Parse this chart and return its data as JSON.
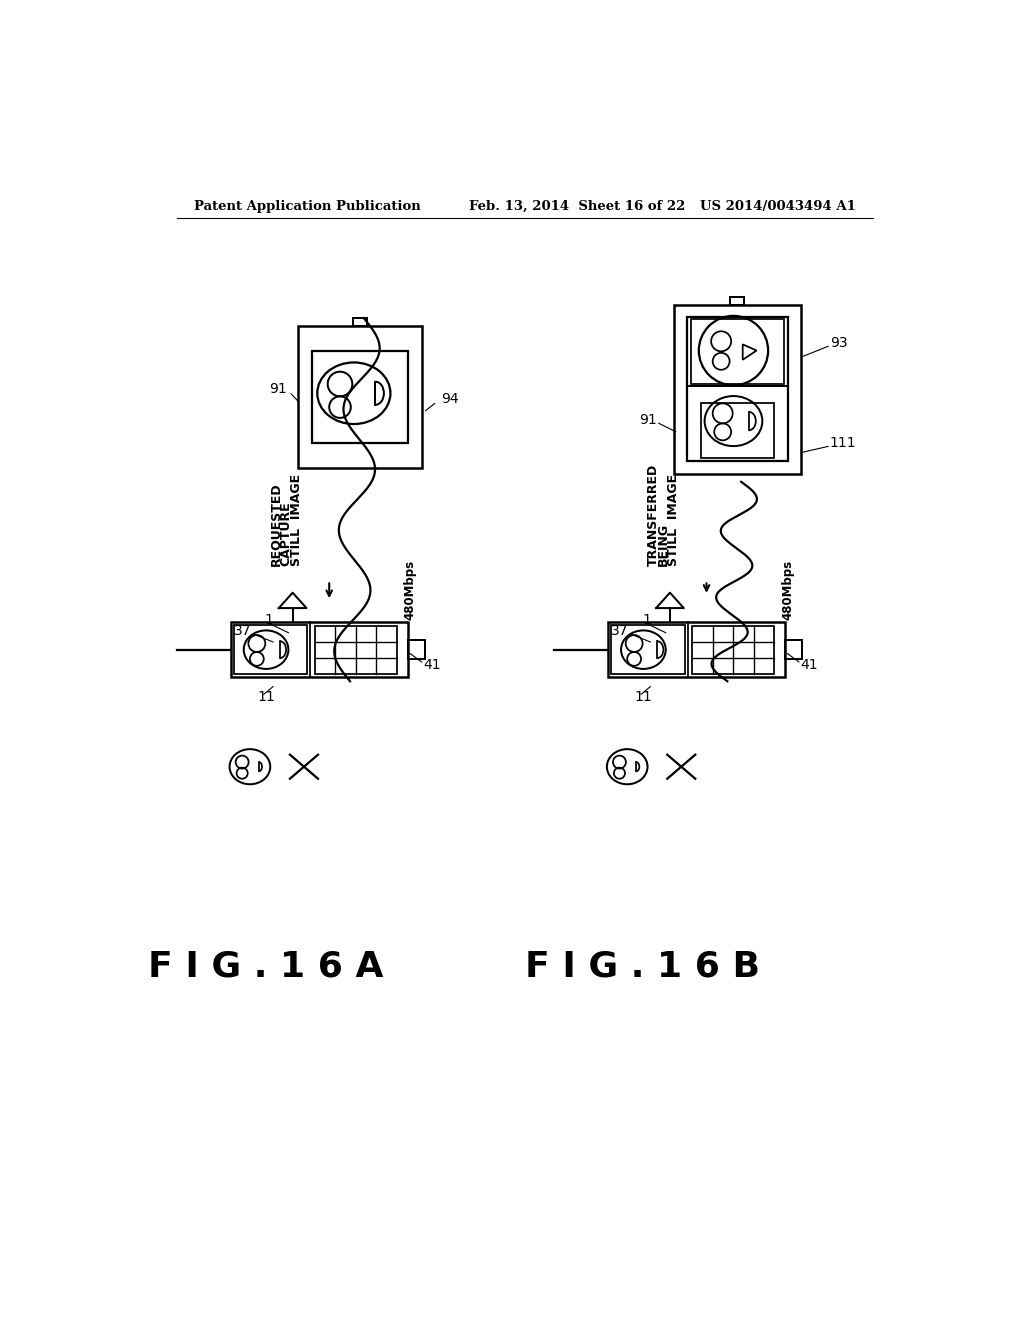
{
  "bg_color": "#ffffff",
  "header_left": "Patent Application Publication",
  "header_mid": "Feb. 13, 2014  Sheet 16 of 22",
  "header_right": "US 2014/0043494 A1",
  "fig_label_a": "FIG.16A",
  "fig_label_b": "FIG.16B",
  "text_a_lines": [
    "STILL  IMAGE",
    "CAPTURE",
    "REQUESTED"
  ],
  "text_b_lines": [
    "STILL  IMAGE",
    "BEING",
    "TRANSFERRED"
  ],
  "speed_label": "480Mbps"
}
